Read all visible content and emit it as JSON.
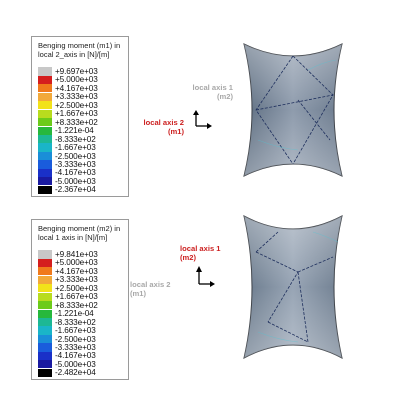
{
  "panels": [
    {
      "legend_title_1": "Benging moment (m1) in",
      "legend_title_2": "local 2_axis in [N]/[m]",
      "values": [
        "+9.697e+03",
        "+5.000e+03",
        "+4.167e+03",
        "+3.333e+03",
        "+2.500e+03",
        "+1.667e+03",
        "+8.333e+02",
        "-1.221e-04",
        "-8.333e+02",
        "-1.667e+03",
        "-2.500e+03",
        "-3.333e+03",
        "-4.167e+03",
        "-5.000e+03",
        "-2.367e+04"
      ],
      "axis_top_line1": "local axis 1",
      "axis_top_line2": "(m2)",
      "axis_left_line1": "local axis 2",
      "axis_left_line2": "(m1)",
      "axis_top_color": "#a8a8a8",
      "axis_left_color": "#cc1f1f"
    },
    {
      "legend_title_1": "Benging moment (m2) in",
      "legend_title_2": "local 1 axis in [N]/[m]",
      "values": [
        "+9.841e+03",
        "+5.000e+03",
        "+4.167e+03",
        "+3.333e+03",
        "+2.500e+03",
        "+1.667e+03",
        "+8.333e+02",
        "-1.221e-04",
        "-8.333e+02",
        "-1.667e+03",
        "-2.500e+03",
        "-3.333e+03",
        "-4.167e+03",
        "-5.000e+03",
        "-2.482e+04"
      ],
      "axis_top_line1": "local axis 1",
      "axis_top_line2": "(m2)",
      "axis_left_line1": "local axis 2",
      "axis_left_line2": "(m1)",
      "axis_top_color": "#cc1f1f",
      "axis_left_color": "#a8a8a8"
    }
  ],
  "colors": [
    "#c8c8c8",
    "#d51e1e",
    "#f07a1c",
    "#f2a93a",
    "#f2e21a",
    "#b8dc1e",
    "#6ccb1a",
    "#27b83c",
    "#1db894",
    "#1ab5c8",
    "#1a8ed8",
    "#1a5cdc",
    "#1a30c8",
    "#1a1aa0",
    "#000000"
  ]
}
